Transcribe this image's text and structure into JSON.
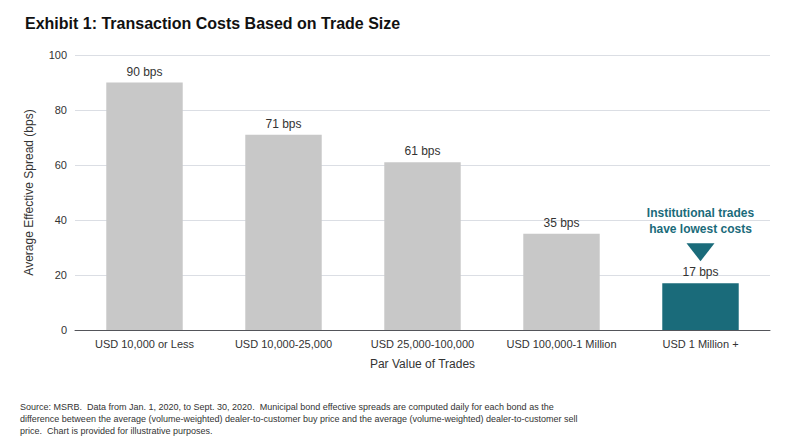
{
  "chart_data": {
    "type": "bar",
    "title": "Exhibit 1: Transaction Costs Based on Trade Size",
    "categories": [
      "USD 10,000 or Less",
      "USD 10,000-25,000",
      "USD 25,000-100,000",
      "USD 100,000-1 Million",
      "USD 1 Million +"
    ],
    "values": [
      90,
      71,
      61,
      35,
      17
    ],
    "value_labels": [
      "90 bps",
      "71 bps",
      "61 bps",
      "35 bps",
      "17 bps"
    ],
    "colors": [
      "#c8c8c8",
      "#c8c8c8",
      "#c8c8c8",
      "#c8c8c8",
      "#1a6b7a"
    ],
    "xlabel": "Par Value of Trades",
    "ylabel": "Average Effective Spread (bps)",
    "ylim": [
      0,
      100
    ],
    "yticks": [
      0,
      20,
      40,
      60,
      80,
      100
    ],
    "grid": true,
    "data_labels": true,
    "annotation": "Institutional trades\nhave lowest costs",
    "source": "Source: MSRB.  Data from Jan. 1, 2020, to Sept. 30, 2020.  Municipal bond effective spreads are computed daily for each bond as the\ndifference between the average (volume-weighted) dealer-to-customer buy price and the average (volume-weighted) dealer-to-customer sell\nprice.  Chart is provided for illustrative purposes."
  }
}
